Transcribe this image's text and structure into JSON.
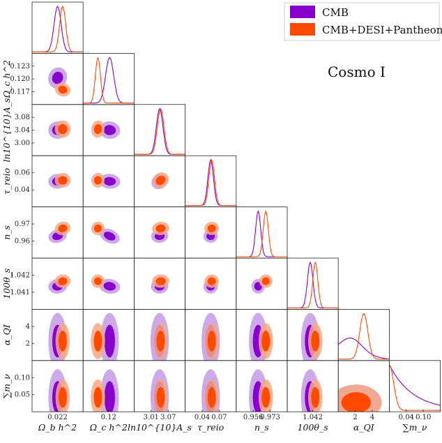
{
  "chart_data": {
    "type": "triangle",
    "annotation": "Cosmo I",
    "parameters": [
      {
        "label": "Ω_b h^2",
        "xticks": [
          "0.022"
        ]
      },
      {
        "label": "Ω_c h^2",
        "xticks": [
          "0.12"
        ],
        "yticks": [
          "0.123",
          "0.120",
          "0.117"
        ]
      },
      {
        "label": "ln10^{10}A_s",
        "xticks": [
          "3.01",
          "3.07"
        ],
        "yticks": [
          "3.08",
          "3.04",
          "3.00"
        ]
      },
      {
        "label": "τ_reio",
        "xticks": [
          "0.04",
          "0.07"
        ],
        "yticks": [
          "0.06",
          "0.04"
        ]
      },
      {
        "label": "n_s",
        "xticks": [
          "0.956",
          "0.973"
        ],
        "yticks": [
          "0.97",
          "0.96"
        ]
      },
      {
        "label": "100θ_s",
        "xticks": [
          "1.042"
        ],
        "yticks": [
          "1.042",
          "1.041"
        ]
      },
      {
        "label": "α_QI",
        "xticks": [
          "2",
          "4"
        ],
        "yticks": [
          "4",
          "2"
        ]
      },
      {
        "label": "∑m_ν",
        "xticks": [
          "0.04",
          "0.10"
        ],
        "yticks": [
          "0.10",
          "0.05"
        ]
      }
    ],
    "series": [
      {
        "name": "CMB",
        "color_inner": "#8800cc",
        "color_outer": "#c49ae6",
        "means": [
          0.5,
          0.52,
          0.5,
          0.5,
          0.43,
          0.45,
          0.42,
          0.35
        ],
        "sigmas": [
          0.14,
          0.16,
          0.13,
          0.11,
          0.1,
          0.11,
          0.25,
          0.3
        ],
        "alpha_qi_posterior": "broad",
        "mnu_posterior": "broad"
      },
      {
        "name": "CMB+DESI+Pantheon+",
        "color_inner": "#ff4a00",
        "color_outer": "#f4a882",
        "means": [
          0.6,
          0.29,
          0.52,
          0.52,
          0.58,
          0.55,
          0.5,
          0.12
        ],
        "sigmas": [
          0.12,
          0.1,
          0.13,
          0.11,
          0.1,
          0.1,
          0.16,
          0.12
        ],
        "alpha_qi_posterior": "peaked",
        "mnu_posterior": "narrow"
      }
    ]
  },
  "legend": {
    "location": "top-right"
  }
}
